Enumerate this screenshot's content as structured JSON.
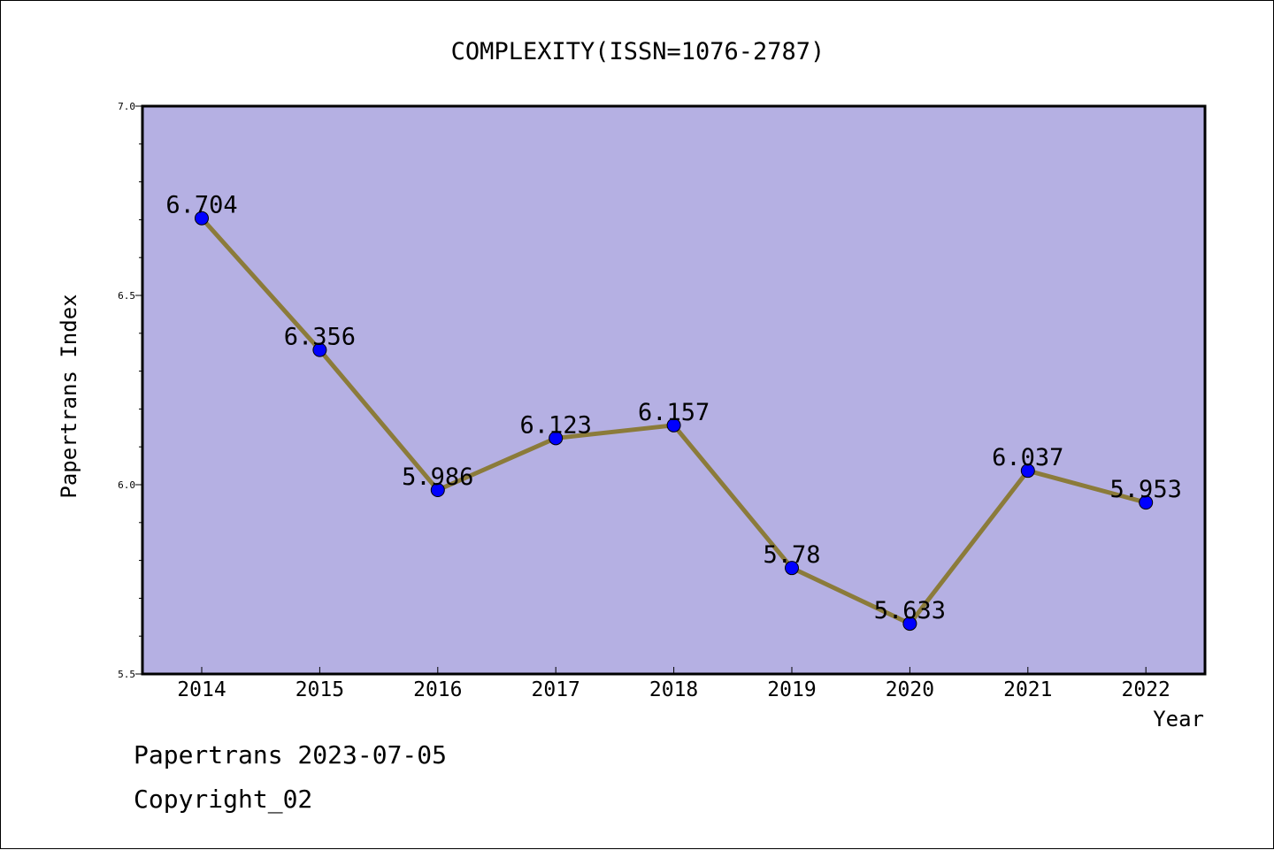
{
  "chart_data": {
    "type": "line",
    "title": "COMPLEXITY(ISSN=1076-2787)",
    "xlabel": "Year",
    "ylabel": "Papertrans Index",
    "categories": [
      "2014",
      "2015",
      "2016",
      "2017",
      "2018",
      "2019",
      "2020",
      "2021",
      "2022"
    ],
    "values": [
      6.704,
      6.356,
      5.986,
      6.123,
      6.157,
      5.78,
      5.633,
      6.037,
      5.953
    ],
    "data_labels": [
      "6.704",
      "6.356",
      "5.986",
      "6.123",
      "6.157",
      "5.78",
      "5.633",
      "6.037",
      "5.953"
    ],
    "ylim": [
      5.5,
      7.0
    ],
    "yticks": [
      5.5,
      6.0,
      6.5,
      7.0
    ],
    "ytick_labels": [
      "5.5",
      "6.0",
      "6.5",
      "7.0"
    ],
    "y_minor_step": 0.1,
    "grid": false,
    "colors": {
      "plot_background": "#b5b0e3",
      "line": "#8b7b3a",
      "marker": "#0000ff"
    }
  },
  "footer": {
    "stamp": "Papertrans 2023-07-05",
    "copyright": "Copyright_02"
  }
}
